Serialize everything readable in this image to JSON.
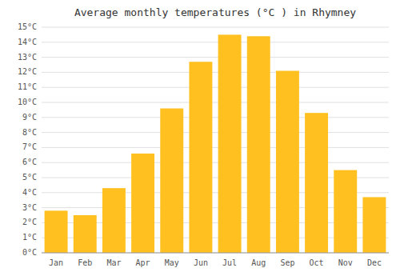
{
  "chart_data": {
    "type": "bar",
    "title": "Average monthly temperatures (°C ) in Rhymney",
    "categories": [
      "Jan",
      "Feb",
      "Mar",
      "Apr",
      "May",
      "Jun",
      "Jul",
      "Aug",
      "Sep",
      "Oct",
      "Nov",
      "Dec"
    ],
    "values": [
      2.8,
      2.5,
      4.3,
      6.6,
      9.6,
      12.7,
      14.5,
      14.4,
      12.1,
      9.3,
      5.5,
      3.7
    ],
    "color": "#FFC020",
    "ylim": [
      0,
      15
    ],
    "yticks": [
      {
        "value": 0,
        "label": "0°C"
      },
      {
        "value": 1,
        "label": "1°C"
      },
      {
        "value": 2,
        "label": "2°C"
      },
      {
        "value": 3,
        "label": "3°C"
      },
      {
        "value": 4,
        "label": "4°C"
      },
      {
        "value": 5,
        "label": "5°C"
      },
      {
        "value": 6,
        "label": "6°C"
      },
      {
        "value": 7,
        "label": "7°C"
      },
      {
        "value": 8,
        "label": "8°C"
      },
      {
        "value": 9,
        "label": "9°C"
      },
      {
        "value": 10,
        "label": "10°C"
      },
      {
        "value": 11,
        "label": "11°C"
      },
      {
        "value": 12,
        "label": "12°C"
      },
      {
        "value": 13,
        "label": "13°C"
      },
      {
        "value": 14,
        "label": "14°C"
      },
      {
        "value": 15,
        "label": "15°C"
      }
    ],
    "grid": true
  }
}
